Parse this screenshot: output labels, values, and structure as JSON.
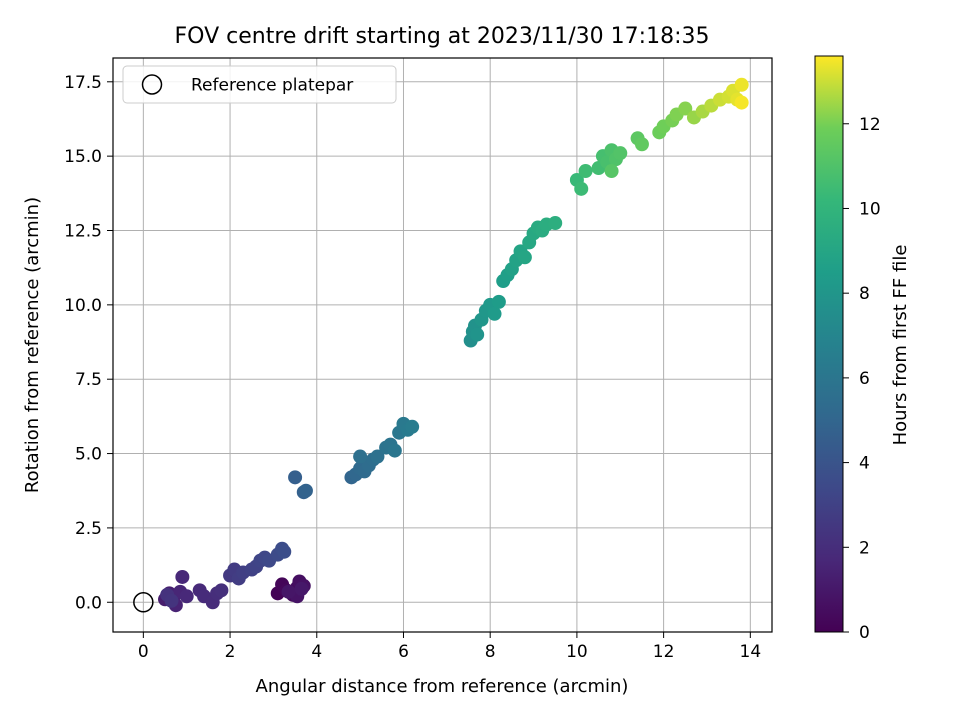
{
  "chart_data": {
    "type": "scatter",
    "title": "FOV centre drift starting at 2023/11/30 17:18:35",
    "xlabel": "Angular distance from reference (arcmin)",
    "ylabel": "Rotation from reference (arcmin)",
    "xlim": [
      -0.7,
      14.5
    ],
    "ylim": [
      -1.0,
      18.3
    ],
    "xticks": [
      0,
      2,
      4,
      6,
      8,
      10,
      12,
      14
    ],
    "xtick_labels": [
      "0",
      "2",
      "4",
      "6",
      "8",
      "10",
      "12",
      "14"
    ],
    "yticks": [
      0.0,
      2.5,
      5.0,
      7.5,
      10.0,
      12.5,
      15.0,
      17.5
    ],
    "ytick_labels": [
      "0.0",
      "2.5",
      "5.0",
      "7.5",
      "10.0",
      "12.5",
      "15.0",
      "17.5"
    ],
    "grid": true,
    "legend": {
      "position": "top-left",
      "entries": [
        "Reference platepar"
      ]
    },
    "reference_point": {
      "x": 0,
      "y": 0,
      "label": "Reference platepar"
    },
    "colorbar": {
      "label": "Hours from first FF file",
      "range": [
        0,
        13.6
      ],
      "ticks": [
        0,
        2,
        4,
        6,
        8,
        10,
        12
      ],
      "tick_labels": [
        "0",
        "2",
        "4",
        "6",
        "8",
        "10",
        "12"
      ],
      "colormap": "viridis"
    },
    "points": [
      {
        "x": 3.1,
        "y": 0.3,
        "t": 0.1
      },
      {
        "x": 3.2,
        "y": 0.6,
        "t": 0.2
      },
      {
        "x": 3.3,
        "y": 0.4,
        "t": 0.3
      },
      {
        "x": 3.45,
        "y": 0.25,
        "t": 0.4
      },
      {
        "x": 3.55,
        "y": 0.5,
        "t": 0.5
      },
      {
        "x": 3.6,
        "y": 0.7,
        "t": 0.6
      },
      {
        "x": 3.7,
        "y": 0.55,
        "t": 0.7
      },
      {
        "x": 3.55,
        "y": 0.2,
        "t": 0.8
      },
      {
        "x": 3.35,
        "y": 0.35,
        "t": 0.9
      },
      {
        "x": 3.65,
        "y": 0.45,
        "t": 1.0
      },
      {
        "x": 0.5,
        "y": 0.1,
        "t": 1.2
      },
      {
        "x": 0.6,
        "y": 0.3,
        "t": 1.3
      },
      {
        "x": 0.7,
        "y": 0.2,
        "t": 1.4
      },
      {
        "x": 0.75,
        "y": -0.1,
        "t": 1.5
      },
      {
        "x": 0.85,
        "y": 0.35,
        "t": 1.6
      },
      {
        "x": 0.9,
        "y": 0.85,
        "t": 1.7
      },
      {
        "x": 1.0,
        "y": 0.2,
        "t": 1.75
      },
      {
        "x": 1.3,
        "y": 0.4,
        "t": 1.8
      },
      {
        "x": 1.4,
        "y": 0.2,
        "t": 1.85
      },
      {
        "x": 1.6,
        "y": 0.0,
        "t": 1.9
      },
      {
        "x": 1.7,
        "y": 0.3,
        "t": 2.0
      },
      {
        "x": 1.8,
        "y": 0.4,
        "t": 2.1
      },
      {
        "x": 0.55,
        "y": 0.25,
        "t": 2.2
      },
      {
        "x": 0.65,
        "y": 0.05,
        "t": 2.3
      },
      {
        "x": 2.0,
        "y": 0.9,
        "t": 2.6
      },
      {
        "x": 2.1,
        "y": 1.1,
        "t": 2.7
      },
      {
        "x": 2.2,
        "y": 0.8,
        "t": 2.8
      },
      {
        "x": 2.3,
        "y": 1.0,
        "t": 2.9
      },
      {
        "x": 2.5,
        "y": 1.1,
        "t": 3.0
      },
      {
        "x": 2.6,
        "y": 1.2,
        "t": 3.1
      },
      {
        "x": 2.7,
        "y": 1.4,
        "t": 3.2
      },
      {
        "x": 2.8,
        "y": 1.5,
        "t": 3.3
      },
      {
        "x": 2.9,
        "y": 1.4,
        "t": 3.4
      },
      {
        "x": 3.1,
        "y": 1.6,
        "t": 3.5
      },
      {
        "x": 3.2,
        "y": 1.8,
        "t": 3.6
      },
      {
        "x": 3.25,
        "y": 1.7,
        "t": 3.7
      },
      {
        "x": 3.5,
        "y": 4.2,
        "t": 4.6
      },
      {
        "x": 3.7,
        "y": 3.7,
        "t": 4.7
      },
      {
        "x": 3.75,
        "y": 3.75,
        "t": 4.8
      },
      {
        "x": 4.8,
        "y": 4.2,
        "t": 5.0
      },
      {
        "x": 4.9,
        "y": 4.3,
        "t": 5.1
      },
      {
        "x": 5.0,
        "y": 4.5,
        "t": 5.2
      },
      {
        "x": 5.1,
        "y": 4.4,
        "t": 5.3
      },
      {
        "x": 5.2,
        "y": 4.6,
        "t": 5.4
      },
      {
        "x": 5.3,
        "y": 4.8,
        "t": 5.5
      },
      {
        "x": 5.0,
        "y": 4.9,
        "t": 5.6
      },
      {
        "x": 5.4,
        "y": 4.9,
        "t": 5.7
      },
      {
        "x": 5.6,
        "y": 5.2,
        "t": 5.8
      },
      {
        "x": 5.7,
        "y": 5.3,
        "t": 5.9
      },
      {
        "x": 5.8,
        "y": 5.1,
        "t": 6.0
      },
      {
        "x": 5.9,
        "y": 5.7,
        "t": 6.1
      },
      {
        "x": 6.0,
        "y": 6.0,
        "t": 6.2
      },
      {
        "x": 6.1,
        "y": 5.8,
        "t": 6.3
      },
      {
        "x": 6.2,
        "y": 5.9,
        "t": 6.4
      },
      {
        "x": 7.55,
        "y": 8.8,
        "t": 7.6
      },
      {
        "x": 7.6,
        "y": 9.1,
        "t": 7.7
      },
      {
        "x": 7.65,
        "y": 9.3,
        "t": 7.8
      },
      {
        "x": 7.7,
        "y": 9.0,
        "t": 7.9
      },
      {
        "x": 7.8,
        "y": 9.5,
        "t": 8.0
      },
      {
        "x": 7.9,
        "y": 9.8,
        "t": 8.1
      },
      {
        "x": 8.0,
        "y": 10.0,
        "t": 8.2
      },
      {
        "x": 8.1,
        "y": 9.7,
        "t": 8.3
      },
      {
        "x": 8.2,
        "y": 10.1,
        "t": 8.4
      },
      {
        "x": 8.3,
        "y": 10.8,
        "t": 8.5
      },
      {
        "x": 8.4,
        "y": 11.0,
        "t": 8.6
      },
      {
        "x": 8.5,
        "y": 11.2,
        "t": 8.7
      },
      {
        "x": 8.6,
        "y": 11.5,
        "t": 8.8
      },
      {
        "x": 8.7,
        "y": 11.8,
        "t": 8.9
      },
      {
        "x": 8.8,
        "y": 11.6,
        "t": 9.0
      },
      {
        "x": 8.9,
        "y": 12.1,
        "t": 9.1
      },
      {
        "x": 9.0,
        "y": 12.4,
        "t": 9.2
      },
      {
        "x": 9.1,
        "y": 12.6,
        "t": 9.3
      },
      {
        "x": 9.2,
        "y": 12.5,
        "t": 9.4
      },
      {
        "x": 9.3,
        "y": 12.7,
        "t": 9.5
      },
      {
        "x": 9.5,
        "y": 12.75,
        "t": 9.6
      },
      {
        "x": 10.0,
        "y": 14.2,
        "t": 10.3
      },
      {
        "x": 10.1,
        "y": 13.9,
        "t": 10.4
      },
      {
        "x": 10.2,
        "y": 14.5,
        "t": 10.5
      },
      {
        "x": 10.5,
        "y": 14.6,
        "t": 10.6
      },
      {
        "x": 10.6,
        "y": 15.0,
        "t": 10.7
      },
      {
        "x": 10.7,
        "y": 14.8,
        "t": 10.8
      },
      {
        "x": 10.8,
        "y": 15.2,
        "t": 10.9
      },
      {
        "x": 10.9,
        "y": 14.9,
        "t": 11.0
      },
      {
        "x": 11.0,
        "y": 15.1,
        "t": 11.1
      },
      {
        "x": 10.8,
        "y": 14.5,
        "t": 11.2
      },
      {
        "x": 11.4,
        "y": 15.6,
        "t": 11.4
      },
      {
        "x": 11.5,
        "y": 15.4,
        "t": 11.5
      },
      {
        "x": 11.9,
        "y": 15.8,
        "t": 11.8
      },
      {
        "x": 12.0,
        "y": 16.0,
        "t": 11.9
      },
      {
        "x": 12.2,
        "y": 16.2,
        "t": 12.0
      },
      {
        "x": 12.3,
        "y": 16.4,
        "t": 12.1
      },
      {
        "x": 12.5,
        "y": 16.6,
        "t": 12.2
      },
      {
        "x": 12.7,
        "y": 16.3,
        "t": 12.4
      },
      {
        "x": 12.9,
        "y": 16.5,
        "t": 12.6
      },
      {
        "x": 13.1,
        "y": 16.7,
        "t": 12.8
      },
      {
        "x": 13.3,
        "y": 16.9,
        "t": 13.0
      },
      {
        "x": 13.5,
        "y": 17.0,
        "t": 13.1
      },
      {
        "x": 13.6,
        "y": 17.2,
        "t": 13.2
      },
      {
        "x": 13.7,
        "y": 16.9,
        "t": 13.3
      },
      {
        "x": 13.8,
        "y": 17.4,
        "t": 13.4
      },
      {
        "x": 13.8,
        "y": 16.8,
        "t": 13.5
      }
    ]
  }
}
